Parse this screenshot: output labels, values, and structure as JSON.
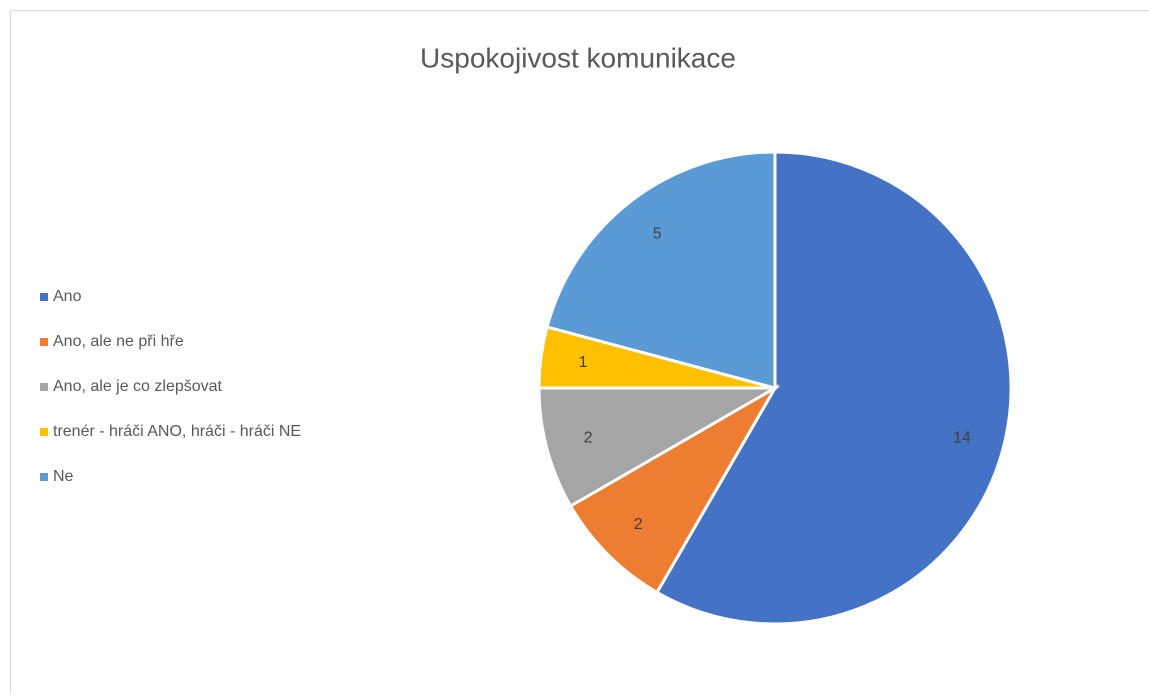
{
  "chart_data": {
    "type": "pie",
    "title": "Uspokojivost komunikace",
    "categories": [
      "Ano",
      "Ano, ale ne při hře",
      "Ano, ale je co zlepšovat",
      "trenér - hráči ANO, hráči - hráči NE",
      "Ne"
    ],
    "values": [
      14,
      2,
      2,
      1,
      5
    ],
    "colors": [
      "#4472c4",
      "#ed7d31",
      "#a5a5a5",
      "#ffc000",
      "#5b9bd5"
    ],
    "legend": "left"
  }
}
